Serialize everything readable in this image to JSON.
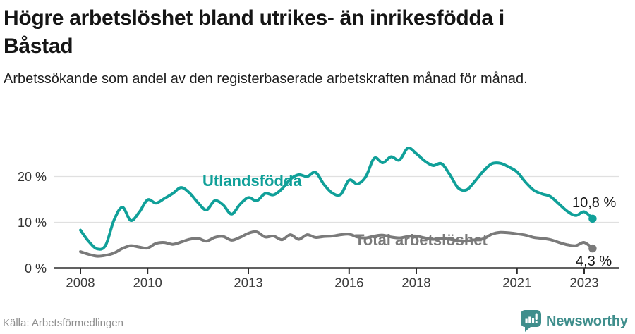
{
  "header": {
    "title_lines": [
      "Högre arbetslöshet bland utrikes- än inrikesfödda i",
      "Båstad"
    ],
    "subtitle": "Arbetssökande som andel av den registerbaserade arbetskraften månad för månad."
  },
  "footer": {
    "source": "Källa: Arbetsförmedlingen",
    "brand_name": "Newsworthy",
    "brand_icon": "newsworthy-speech-bubble-bar-chart-icon"
  },
  "colors": {
    "series_foreign_born": "#10a099",
    "series_total": "#7a7a7a",
    "axis": "#2d2d2d",
    "gridline": "#e0e0e0",
    "brand_teal": "#3f8e8c",
    "end_label_text": "#141414"
  },
  "chart_data": {
    "type": "line",
    "title": "Högre arbetslöshet bland utrikes- än inrikesfödda i Båstad",
    "subtitle": "Arbetssökande som andel av den registerbaserade arbetskraften månad för månad.",
    "grid": "horizontal-light",
    "legend_position": "inline-labels",
    "ylim": [
      0,
      28
    ],
    "x": {
      "start": 2008.0,
      "step_years": 0.25,
      "end": 2023.25
    },
    "x_ticks": [
      {
        "year": 2008,
        "label": "2008"
      },
      {
        "year": 2010,
        "label": "2010"
      },
      {
        "year": 2013,
        "label": "2013"
      },
      {
        "year": 2016,
        "label": "2016"
      },
      {
        "year": 2018,
        "label": "2018"
      },
      {
        "year": 2021,
        "label": "2021"
      },
      {
        "year": 2023,
        "label": "2023"
      }
    ],
    "y_ticks": [
      {
        "value": 0,
        "label": "0 %"
      },
      {
        "value": 10,
        "label": "10 %"
      },
      {
        "value": 20,
        "label": "20 %"
      }
    ],
    "series": [
      {
        "name": "Utlandsfödda",
        "color": "#10a099",
        "end_label": "10,8 %",
        "end_value": 10.8,
        "values": [
          8.3,
          5.8,
          4.2,
          5.0,
          10.5,
          13.3,
          10.4,
          12.2,
          14.9,
          14.2,
          15.2,
          16.3,
          17.6,
          16.4,
          14.3,
          12.7,
          14.7,
          13.8,
          11.8,
          13.9,
          15.4,
          14.7,
          16.3,
          16.0,
          17.3,
          19.4,
          20.4,
          20.0,
          20.9,
          18.3,
          16.4,
          16.1,
          19.2,
          18.4,
          20.0,
          24.0,
          23.0,
          24.3,
          23.6,
          26.2,
          25.0,
          23.4,
          22.4,
          22.8,
          20.4,
          17.5,
          17.1,
          19.0,
          21.2,
          22.8,
          22.9,
          22.1,
          21.0,
          18.8,
          17.0,
          16.2,
          15.6,
          14.0,
          12.4,
          11.5,
          12.3,
          10.8
        ]
      },
      {
        "name": "Total arbetslöshet",
        "color": "#7a7a7a",
        "end_label": "4,3 %",
        "end_value": 4.3,
        "values": [
          3.6,
          3.0,
          2.6,
          2.8,
          3.3,
          4.3,
          4.9,
          4.6,
          4.4,
          5.4,
          5.6,
          5.2,
          5.7,
          6.3,
          6.5,
          5.9,
          6.7,
          6.9,
          6.1,
          6.7,
          7.6,
          7.9,
          6.8,
          7.0,
          6.2,
          7.3,
          6.3,
          7.3,
          6.7,
          6.9,
          7.0,
          7.3,
          7.4,
          6.8,
          6.6,
          7.0,
          7.2,
          6.8,
          6.6,
          6.9,
          7.0,
          6.6,
          6.3,
          6.5,
          6.3,
          6.0,
          5.9,
          6.2,
          6.4,
          7.4,
          7.8,
          7.7,
          7.5,
          7.2,
          6.7,
          6.5,
          6.2,
          5.6,
          5.1,
          4.9,
          5.6,
          4.3
        ]
      }
    ]
  }
}
